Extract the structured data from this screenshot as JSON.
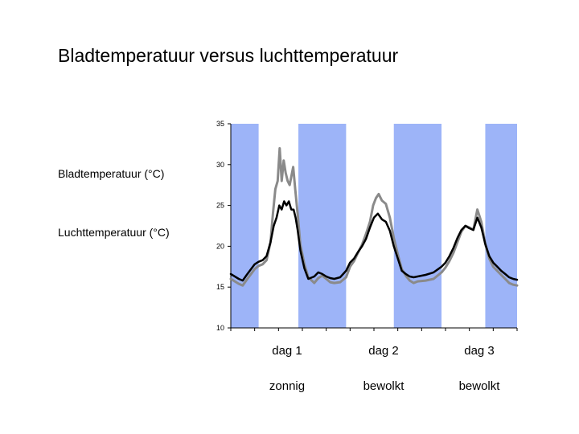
{
  "slide": {
    "title": "Bladtemperatuur versus luchttemperatuur"
  },
  "chart_data": {
    "type": "line",
    "title": "Bladtemperatuur versus luchttemperatuur",
    "xlabel": "",
    "ylabel": "",
    "ylim": [
      10,
      35
    ],
    "yticks": [
      "35",
      "30",
      "25",
      "20",
      "15",
      "10"
    ],
    "xlim": [
      0,
      72
    ],
    "night_bands": [
      [
        0,
        7
      ],
      [
        17,
        29
      ],
      [
        41,
        53
      ],
      [
        64,
        72
      ]
    ],
    "night_color": "#9db4f8",
    "days": [
      {
        "label": "dag 1",
        "weather": "zonnig"
      },
      {
        "label": "dag 2",
        "weather": "bewolkt"
      },
      {
        "label": "dag 3",
        "weather": "bewolkt"
      }
    ],
    "series": [
      {
        "name": "Bladtemperatuur (°C)",
        "color": "#8a8a8a",
        "points": [
          [
            0,
            16.0
          ],
          [
            2,
            15.4
          ],
          [
            3,
            15.2
          ],
          [
            4,
            15.9
          ],
          [
            6,
            17.2
          ],
          [
            7,
            17.6
          ],
          [
            8,
            17.8
          ],
          [
            9,
            18.3
          ],
          [
            10,
            20.5
          ],
          [
            10.6,
            24.0
          ],
          [
            11.2,
            27.0
          ],
          [
            11.8,
            28.0
          ],
          [
            12.3,
            32.0
          ],
          [
            12.8,
            28.0
          ],
          [
            13.3,
            30.5
          ],
          [
            13.8,
            29.0
          ],
          [
            14.3,
            28.0
          ],
          [
            14.8,
            27.5
          ],
          [
            15.2,
            28.5
          ],
          [
            15.7,
            29.7
          ],
          [
            16.2,
            27.0
          ],
          [
            16.8,
            24.0
          ],
          [
            17.5,
            20.2
          ],
          [
            18.5,
            17.8
          ],
          [
            19.5,
            16.2
          ],
          [
            21,
            15.5
          ],
          [
            22,
            16.1
          ],
          [
            23,
            16.4
          ],
          [
            24,
            16.0
          ],
          [
            25,
            15.6
          ],
          [
            26,
            15.5
          ],
          [
            27.5,
            15.6
          ],
          [
            29,
            16.2
          ],
          [
            30,
            17.5
          ],
          [
            31,
            18.2
          ],
          [
            32,
            19.2
          ],
          [
            33,
            20.2
          ],
          [
            34,
            21.5
          ],
          [
            35,
            23.0
          ],
          [
            35.8,
            25.0
          ],
          [
            36.5,
            25.9
          ],
          [
            37.2,
            26.4
          ],
          [
            38,
            25.6
          ],
          [
            39,
            25.2
          ],
          [
            40,
            23.5
          ],
          [
            41,
            21.0
          ],
          [
            42,
            19.0
          ],
          [
            43,
            17.2
          ],
          [
            44,
            16.4
          ],
          [
            45,
            15.8
          ],
          [
            46,
            15.5
          ],
          [
            47,
            15.7
          ],
          [
            49,
            15.8
          ],
          [
            51,
            16.0
          ],
          [
            53,
            16.8
          ],
          [
            54,
            17.4
          ],
          [
            55,
            18.2
          ],
          [
            56,
            19.2
          ],
          [
            57,
            20.5
          ],
          [
            58,
            21.8
          ],
          [
            59,
            22.5
          ],
          [
            60,
            22.3
          ],
          [
            61,
            22.0
          ],
          [
            62,
            24.5
          ],
          [
            63,
            23.0
          ],
          [
            64,
            20.3
          ],
          [
            65,
            18.5
          ],
          [
            66,
            17.5
          ],
          [
            67,
            17.0
          ],
          [
            68,
            16.5
          ],
          [
            69,
            16.0
          ],
          [
            70,
            15.5
          ],
          [
            71,
            15.3
          ],
          [
            72,
            15.2
          ]
        ]
      },
      {
        "name": "Luchttemperatuur (°C)",
        "color": "#000000",
        "points": [
          [
            0,
            16.6
          ],
          [
            2,
            16.0
          ],
          [
            3,
            15.8
          ],
          [
            4,
            16.5
          ],
          [
            6,
            17.8
          ],
          [
            7,
            18.1
          ],
          [
            8,
            18.3
          ],
          [
            9,
            18.8
          ],
          [
            10,
            20.5
          ],
          [
            10.8,
            22.5
          ],
          [
            11.5,
            23.5
          ],
          [
            12.2,
            25.0
          ],
          [
            12.8,
            24.5
          ],
          [
            13.4,
            25.5
          ],
          [
            14.0,
            25.0
          ],
          [
            14.6,
            25.5
          ],
          [
            15.2,
            24.5
          ],
          [
            15.8,
            24.5
          ],
          [
            16.3,
            23.5
          ],
          [
            16.8,
            22.0
          ],
          [
            17.5,
            19.5
          ],
          [
            18.5,
            17.3
          ],
          [
            19.5,
            16.0
          ],
          [
            21,
            16.3
          ],
          [
            22,
            16.8
          ],
          [
            23,
            16.6
          ],
          [
            24,
            16.3
          ],
          [
            25,
            16.1
          ],
          [
            26,
            16.0
          ],
          [
            27.5,
            16.2
          ],
          [
            29,
            17.0
          ],
          [
            30,
            18.0
          ],
          [
            31,
            18.5
          ],
          [
            32,
            19.3
          ],
          [
            33,
            20.0
          ],
          [
            34,
            20.9
          ],
          [
            35,
            22.3
          ],
          [
            36,
            23.5
          ],
          [
            37,
            24.0
          ],
          [
            38,
            23.3
          ],
          [
            39,
            23.0
          ],
          [
            40,
            21.9
          ],
          [
            41,
            20.0
          ],
          [
            42,
            18.5
          ],
          [
            43,
            17.0
          ],
          [
            44,
            16.6
          ],
          [
            45,
            16.3
          ],
          [
            46,
            16.2
          ],
          [
            47,
            16.3
          ],
          [
            49,
            16.5
          ],
          [
            51,
            16.8
          ],
          [
            53,
            17.5
          ],
          [
            54,
            18.0
          ],
          [
            55,
            18.8
          ],
          [
            56,
            19.8
          ],
          [
            57,
            21.0
          ],
          [
            58,
            22.0
          ],
          [
            59,
            22.5
          ],
          [
            60,
            22.2
          ],
          [
            61,
            22.0
          ],
          [
            62,
            23.5
          ],
          [
            63,
            22.3
          ],
          [
            64,
            20.3
          ],
          [
            65,
            18.8
          ],
          [
            66,
            18.0
          ],
          [
            67,
            17.5
          ],
          [
            68,
            17.0
          ],
          [
            69,
            16.6
          ],
          [
            70,
            16.2
          ],
          [
            71,
            16.0
          ],
          [
            72,
            15.9
          ]
        ]
      }
    ]
  }
}
